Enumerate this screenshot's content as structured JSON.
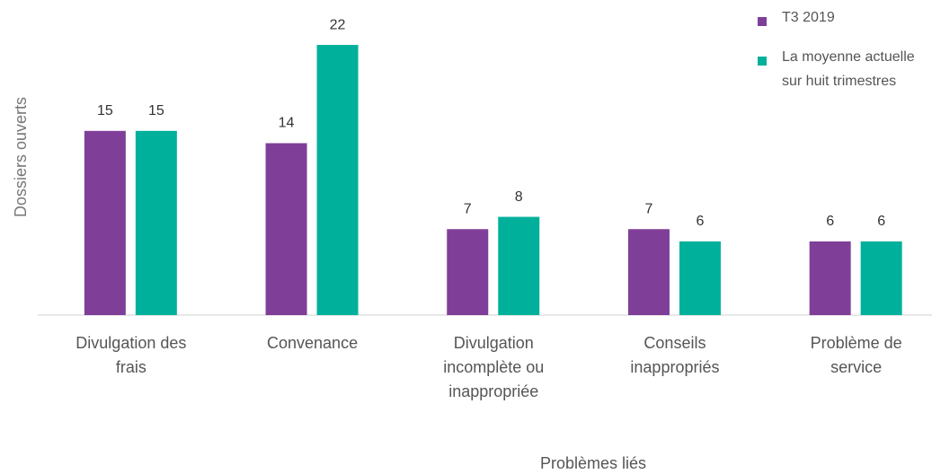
{
  "chart_data": {
    "type": "bar",
    "categories": [
      "Divulgation des frais",
      "Convenance",
      "Divulgation incomplète ou inappropriée",
      "Conseils inappropriés",
      "Problème de service"
    ],
    "series": [
      {
        "name": "T3 2019",
        "color": "#7f3f98",
        "values": [
          15,
          14,
          7,
          7,
          6
        ]
      },
      {
        "name": "La moyenne actuelle sur huit trimestres",
        "color": "#00b09b",
        "values": [
          15,
          22,
          8,
          6,
          6
        ]
      }
    ],
    "ylabel": "Dossiers ouverts",
    "xlabel": "Problèmes liés",
    "ylim": [
      0,
      25
    ],
    "legend": "top-right"
  }
}
